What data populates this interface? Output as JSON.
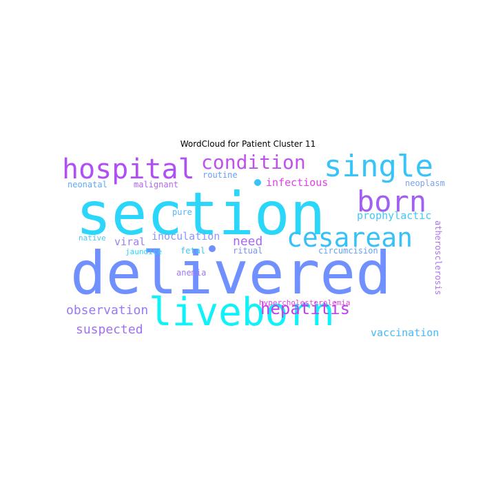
{
  "title": "WordCloud for Patient Cluster 11",
  "words": [
    {
      "text": "delivered",
      "color": "#7090ff"
    },
    {
      "text": "section",
      "color": "#2ad6fa"
    },
    {
      "text": "liveborn",
      "color": "#10f2fa"
    },
    {
      "text": "single",
      "color": "#38c4f8"
    },
    {
      "text": "hospital",
      "color": "#b050f4"
    },
    {
      "text": "cesarean",
      "color": "#38c0f8"
    },
    {
      "text": "born",
      "color": "#a060f0"
    },
    {
      "text": "condition",
      "color": "#c050f0"
    },
    {
      "text": "hepatitis",
      "color": "#c040ec"
    },
    {
      "text": "observation",
      "color": "#9878f4"
    },
    {
      "text": "suspected",
      "color": "#a070f0"
    },
    {
      "text": "vaccination",
      "color": "#48b8f8"
    },
    {
      "text": "need",
      "color": "#a868f0"
    },
    {
      "text": "inoculation",
      "color": "#8898f6"
    },
    {
      "text": "prophylactic",
      "color": "#40c8f8"
    },
    {
      "text": "viral",
      "color": "#9a80f2"
    },
    {
      "text": "infectious",
      "color": "#e040e8"
    },
    {
      "text": "neonatal",
      "color": "#60a8f6"
    },
    {
      "text": "malignant",
      "color": "#b068f0"
    },
    {
      "text": "routine",
      "color": "#6a9cf4"
    },
    {
      "text": "neoplasm",
      "color": "#7ca0f4"
    },
    {
      "text": "pure",
      "color": "#58b4f6"
    },
    {
      "text": "native",
      "color": "#48c8f8"
    },
    {
      "text": "jaundice",
      "color": "#20d8fa"
    },
    {
      "text": "fetal",
      "color": "#40c4f8"
    },
    {
      "text": "ritual",
      "color": "#7a90f4"
    },
    {
      "text": "circumcision",
      "color": "#68a0f6"
    },
    {
      "text": "anemia",
      "color": "#a078f0"
    },
    {
      "text": "hypercholesterolemia",
      "color": "#e040e8"
    },
    {
      "text": "atherosclerosis",
      "color": "#b070f0"
    }
  ],
  "dot_colors": [
    "#38c4f8",
    "#7090ff"
  ]
}
